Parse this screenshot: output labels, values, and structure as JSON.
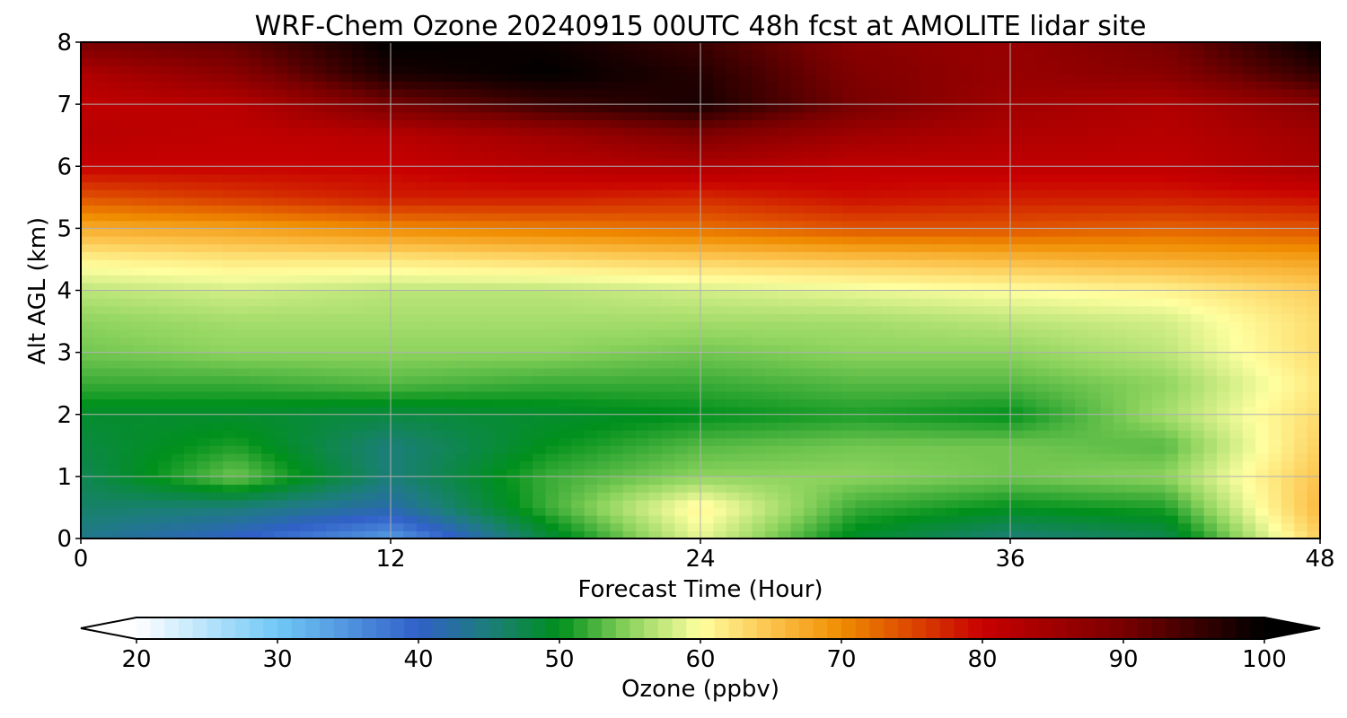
{
  "chart_data": {
    "type": "heatmap",
    "title": "WRF-Chem Ozone  20240915 00UTC 48h fcst at AMOLITE lidar site",
    "xlabel": "Forecast Time (Hour)",
    "ylabel": "Alt AGL (km)",
    "xlim": [
      0,
      48
    ],
    "ylim": [
      0,
      8
    ],
    "x_ticks": [
      "0",
      "12",
      "24",
      "36",
      "48"
    ],
    "y_ticks": [
      "0",
      "1",
      "2",
      "3",
      "4",
      "5",
      "6",
      "7",
      "8"
    ],
    "grid": true,
    "x": [
      0,
      6,
      12,
      18,
      24,
      30,
      36,
      42,
      48
    ],
    "y": [
      0,
      0.5,
      1,
      1.5,
      2,
      2.5,
      3,
      3.5,
      4,
      4.5,
      5,
      5.5,
      6,
      6.5,
      7,
      7.5,
      8
    ],
    "z": [
      [
        44,
        40,
        34,
        48,
        59,
        49,
        45,
        47,
        64
      ],
      [
        46,
        45,
        42,
        52,
        61,
        52,
        50,
        51,
        66
      ],
      [
        47,
        54,
        45,
        52,
        55,
        55,
        54,
        55,
        65
      ],
      [
        48,
        51,
        45,
        50,
        53,
        54,
        54,
        53,
        64
      ],
      [
        49,
        49,
        48,
        49,
        50,
        51,
        50,
        56,
        63
      ],
      [
        52,
        52,
        53,
        52,
        52,
        53,
        53,
        55,
        62
      ],
      [
        54,
        55,
        55,
        55,
        54,
        55,
        55,
        57,
        63
      ],
      [
        55,
        56,
        56,
        56,
        56,
        56,
        57,
        58,
        63
      ],
      [
        57,
        58,
        57,
        57,
        58,
        59,
        60,
        61,
        64
      ],
      [
        61,
        62,
        62,
        63,
        64,
        65,
        66,
        67,
        68
      ],
      [
        67,
        68,
        70,
        71,
        72,
        74,
        74,
        73,
        74
      ],
      [
        74,
        76,
        78,
        78,
        77,
        79,
        78,
        78,
        79
      ],
      [
        80,
        80,
        80,
        82,
        83,
        81,
        81,
        81,
        84
      ],
      [
        82,
        81,
        82,
        85,
        89,
        85,
        83,
        82,
        85
      ],
      [
        81,
        82,
        90,
        95,
        98,
        90,
        85,
        83,
        88
      ],
      [
        83,
        88,
        98,
        100,
        97,
        89,
        86,
        88,
        96
      ],
      [
        90,
        92,
        100,
        99,
        95,
        88,
        86,
        90,
        100
      ]
    ],
    "colorbar": {
      "label": "Ozone  (ppbv)",
      "min": 20,
      "max": 100,
      "ticks": [
        "20",
        "30",
        "40",
        "50",
        "60",
        "70",
        "80",
        "90",
        "100"
      ],
      "extend": "both",
      "stops": [
        {
          "v": 20,
          "c": "#ffffff"
        },
        {
          "v": 30,
          "c": "#70c8f5"
        },
        {
          "v": 40,
          "c": "#3160c8"
        },
        {
          "v": 45,
          "c": "#1c7e7a"
        },
        {
          "v": 50,
          "c": "#00901c"
        },
        {
          "v": 55,
          "c": "#8ed45e"
        },
        {
          "v": 60,
          "c": "#ffffa0"
        },
        {
          "v": 65,
          "c": "#fcc34c"
        },
        {
          "v": 70,
          "c": "#f08c00"
        },
        {
          "v": 80,
          "c": "#c80000"
        },
        {
          "v": 90,
          "c": "#780000"
        },
        {
          "v": 100,
          "c": "#000000"
        }
      ]
    }
  }
}
